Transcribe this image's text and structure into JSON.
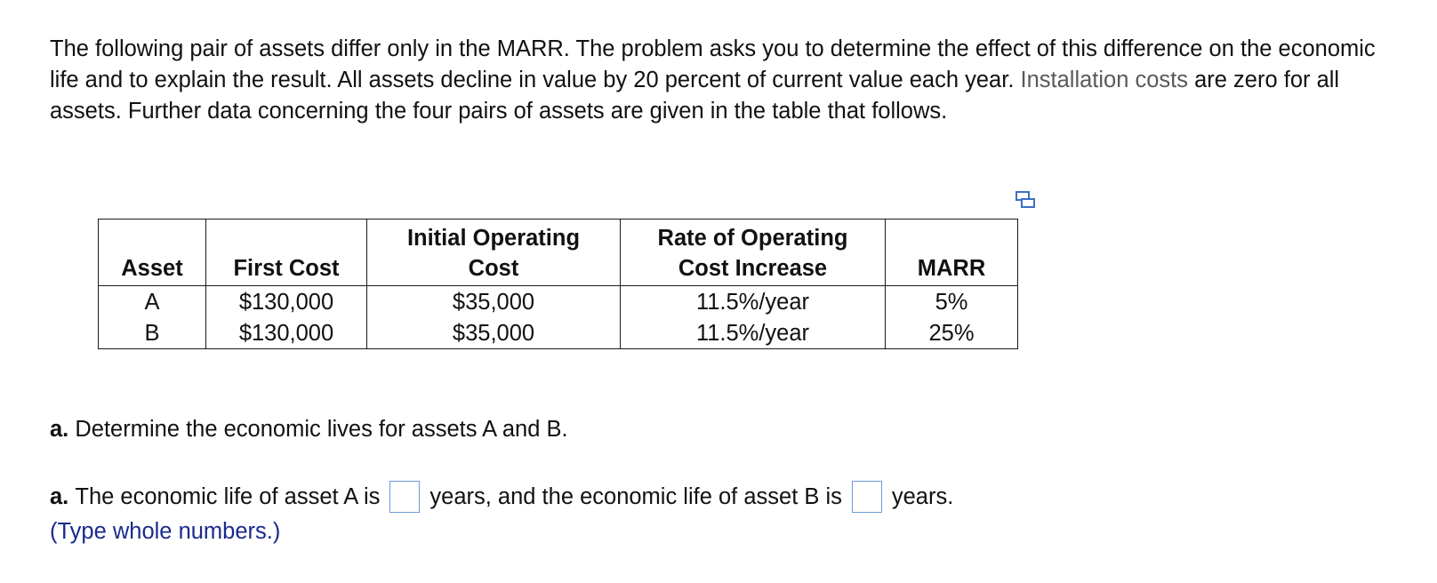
{
  "intro": {
    "part1": "The following pair of assets differ only in the MARR. The problem asks you to determine the effect of this difference on the economic life and to explain the result. All assets decline in value by 20 percent of current value each year.",
    "link_term": "Installation costs",
    "part2": "are zero for all assets. Further data concerning the four pairs of assets are given in the table that follows."
  },
  "table": {
    "headers": {
      "asset": "Asset",
      "first_cost": "First Cost",
      "initial_op_line1": "Initial Operating",
      "initial_op_line2": "Cost",
      "rate_line1": "Rate of Operating",
      "rate_line2": "Cost Increase",
      "marr": "MARR"
    },
    "rows": [
      {
        "asset": "A",
        "first_cost": "$130,000",
        "initial_op": "$35,000",
        "rate": "11.5%/year",
        "marr": "5%"
      },
      {
        "asset": "B",
        "first_cost": "$130,000",
        "initial_op": "$35,000",
        "rate": "11.5%/year",
        "marr": "25%"
      }
    ]
  },
  "question": {
    "label": "a.",
    "text": "Determine the economic lives for assets A and B."
  },
  "answer": {
    "label": "a.",
    "text1": "The economic life of asset A is",
    "text2": "years, and the economic life of asset B is",
    "text3": "years.",
    "hint": "(Type whole numbers.)"
  },
  "icons": {
    "copy": "copy-table-icon"
  },
  "colors": {
    "hint": "#1a2a8c",
    "input_border": "#6b9bd8",
    "link_term": "#595959"
  }
}
